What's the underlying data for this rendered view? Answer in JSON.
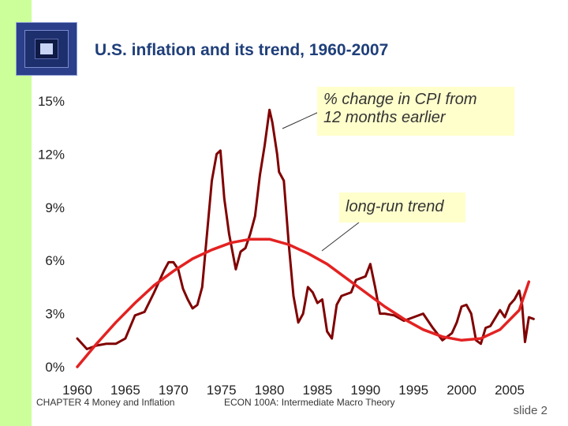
{
  "title": {
    "main": "U.S. inflation and its trend,",
    "years": "1960-2007"
  },
  "callouts": {
    "cpi_line1": "% change in CPI from",
    "cpi_line2": "12 months earlier",
    "trend": "long-run trend"
  },
  "footer": {
    "chapter": "CHAPTER 4   Money and Inflation",
    "course": "ECON 100A: Intermediate Macro Theory",
    "slide_label": "slide",
    "slide_number": "2"
  },
  "colors": {
    "cpi_line": "#800000",
    "trend_line": "#e32222",
    "left_bar": "#ccff99",
    "title": "#1f3f7a"
  },
  "chart_data": {
    "type": "line",
    "title": "U.S. inflation and its trend, 1960-2007",
    "xlim": [
      1960,
      2007.5
    ],
    "ylim": [
      0,
      15
    ],
    "x_ticks": [
      1960,
      1965,
      1970,
      1975,
      1980,
      1985,
      1990,
      1995,
      2000,
      2005
    ],
    "x_tick_labels": [
      "1960",
      "1965",
      "1970",
      "1975",
      "1980",
      "1985",
      "1990",
      "1995",
      "2000",
      "2005"
    ],
    "y_ticks": [
      0,
      3,
      6,
      9,
      12,
      15
    ],
    "y_tick_labels": [
      "0%",
      "3%",
      "6%",
      "9%",
      "12%",
      "15%"
    ],
    "grid": false,
    "series": [
      {
        "name": "% change in CPI from 12 months earlier",
        "x": [
          1960,
          1961,
          1962,
          1963,
          1964,
          1965,
          1966,
          1967,
          1968,
          1969,
          1969.5,
          1970,
          1970.5,
          1971,
          1971.5,
          1972,
          1972.5,
          1973,
          1973.5,
          1974,
          1974.5,
          1974.9,
          1975.3,
          1975.8,
          1976.5,
          1977,
          1977.5,
          1978,
          1978.5,
          1979,
          1979.5,
          1980,
          1980.3,
          1980.8,
          1981,
          1981.5,
          1982,
          1982.5,
          1983,
          1983.5,
          1984,
          1984.5,
          1985,
          1985.5,
          1986,
          1986.5,
          1987,
          1987.5,
          1988,
          1988.5,
          1989,
          1989.5,
          1990,
          1990.5,
          1991,
          1991.5,
          1992,
          1993,
          1994,
          1995,
          1996,
          1997,
          1998,
          1999,
          1999.5,
          2000,
          2000.5,
          2001,
          2001.5,
          2002,
          2002.5,
          2003,
          2004,
          2004.5,
          2005,
          2005.5,
          2006,
          2006.3,
          2006.6,
          2007,
          2007.5
        ],
        "values": [
          1.6,
          1.0,
          1.2,
          1.3,
          1.3,
          1.6,
          2.9,
          3.1,
          4.2,
          5.4,
          5.9,
          5.9,
          5.5,
          4.4,
          3.8,
          3.3,
          3.5,
          4.5,
          7.5,
          10.5,
          12.0,
          12.2,
          9.5,
          7.5,
          5.5,
          6.5,
          6.7,
          7.5,
          8.5,
          10.8,
          12.5,
          14.5,
          13.8,
          12.0,
          11.0,
          10.5,
          7.0,
          4.0,
          2.5,
          3.0,
          4.5,
          4.2,
          3.6,
          3.8,
          2.0,
          1.6,
          3.5,
          4.0,
          4.1,
          4.2,
          4.9,
          5.0,
          5.1,
          5.8,
          4.5,
          3.0,
          3.0,
          2.9,
          2.6,
          2.8,
          3.0,
          2.2,
          1.5,
          1.9,
          2.5,
          3.4,
          3.5,
          3.0,
          1.5,
          1.3,
          2.2,
          2.3,
          3.2,
          2.8,
          3.5,
          3.8,
          4.3,
          3.5,
          1.4,
          2.8,
          2.7
        ]
      },
      {
        "name": "long-run trend",
        "x": [
          1960,
          1962,
          1964,
          1966,
          1968,
          1970,
          1972,
          1974,
          1976,
          1978,
          1980,
          1982,
          1984,
          1986,
          1988,
          1990,
          1992,
          1994,
          1996,
          1998,
          2000,
          2002,
          2004,
          2006,
          2007
        ],
        "values": [
          0.0,
          1.3,
          2.5,
          3.6,
          4.6,
          5.4,
          6.1,
          6.6,
          7.0,
          7.2,
          7.2,
          6.9,
          6.4,
          5.8,
          5.0,
          4.2,
          3.4,
          2.7,
          2.1,
          1.7,
          1.5,
          1.6,
          2.1,
          3.2,
          4.8
        ]
      }
    ]
  }
}
